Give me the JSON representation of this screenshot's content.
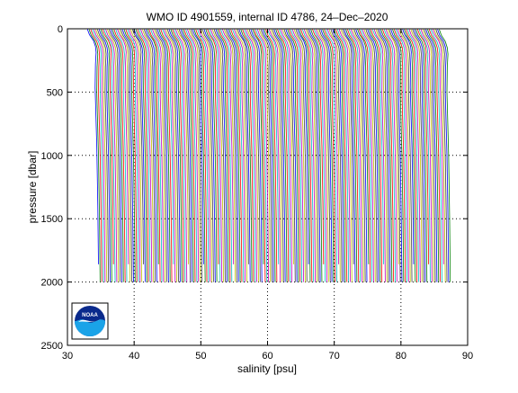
{
  "chart_data": {
    "type": "line",
    "title": "WMO ID 4901559, internal ID 4786, 24–Dec–2020",
    "xlabel": "salinity [psu]",
    "ylabel": "pressure [dbar]",
    "xlim": [
      30,
      90
    ],
    "ylim": [
      0,
      2500
    ],
    "y_reversed": true,
    "x_ticks": [
      30,
      40,
      50,
      60,
      70,
      80,
      90
    ],
    "y_ticks": [
      0,
      500,
      1000,
      1500,
      2000,
      2500
    ],
    "grid": "dotted",
    "offset_step_psu": 0.25,
    "profile_count": 212,
    "base_profile": {
      "pressure": [
        5,
        50,
        100,
        150,
        200,
        300,
        500,
        700,
        1000,
        1500,
        2000
      ],
      "salinity": [
        33.0,
        33.3,
        33.9,
        34.2,
        34.3,
        34.2,
        34.15,
        34.25,
        34.4,
        34.55,
        34.65
      ]
    },
    "series_colors": [
      "#0000ff",
      "#008000",
      "#ff0000",
      "#00bfbf",
      "#bf00bf",
      "#bfbf00",
      "#404040"
    ],
    "annotations": []
  },
  "logo": {
    "text": "NOAA",
    "colors": {
      "sky": "#0a2a8c",
      "sea": "#1aa3e8",
      "bird": "#ffffff"
    }
  }
}
